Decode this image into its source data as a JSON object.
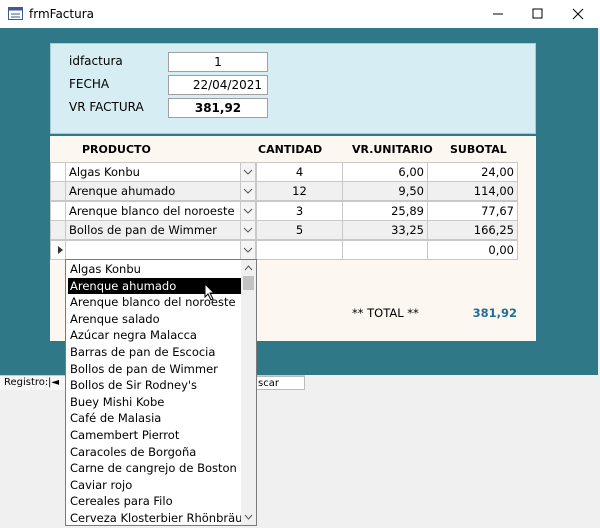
{
  "window": {
    "title": "frmFactura"
  },
  "header": {
    "fields": [
      {
        "label": "idfactura",
        "value": "1"
      },
      {
        "label": "FECHA",
        "value": "22/04/2021"
      },
      {
        "label": "VR FACTURA",
        "value": "381,92"
      }
    ]
  },
  "table": {
    "columns": [
      "PRODUCTO",
      "CANTIDAD",
      "VR.UNITARIO",
      "SUBOTAL"
    ],
    "rows": [
      [
        "Algas Konbu",
        "4",
        "6,00",
        "24,00"
      ],
      [
        "Arenque ahumado",
        "12",
        "9,50",
        "114,00"
      ],
      [
        "Arenque blanco del noroeste",
        "3",
        "25,89",
        "77,67"
      ],
      [
        "Bollos de pan de Wimmer",
        "5",
        "33,25",
        "166,25"
      ]
    ],
    "new_row_subtotal": "0,00"
  },
  "footer": {
    "total_label": "** TOTAL **",
    "total_value": "381,92"
  },
  "dropdown": {
    "items": [
      "Algas Konbu",
      "Arenque ahumado",
      "Arenque blanco del noroeste",
      "Arenque salado",
      "Azúcar negra Malacca",
      "Barras de pan de Escocia",
      "Bollos de pan de Wimmer",
      "Bollos de Sir Rodney's",
      "Buey Mishi Kobe",
      "Café de Malasia",
      "Camembert Pierrot",
      "Caracoles de Borgoña",
      "Carne de cangrejo de Boston",
      "Caviar rojo",
      "Cereales para Filo",
      "Cerveza Klosterbier Rhönbräu"
    ],
    "selected": 1
  },
  "navigation": {
    "label": "Registro:",
    "search": "scar"
  }
}
